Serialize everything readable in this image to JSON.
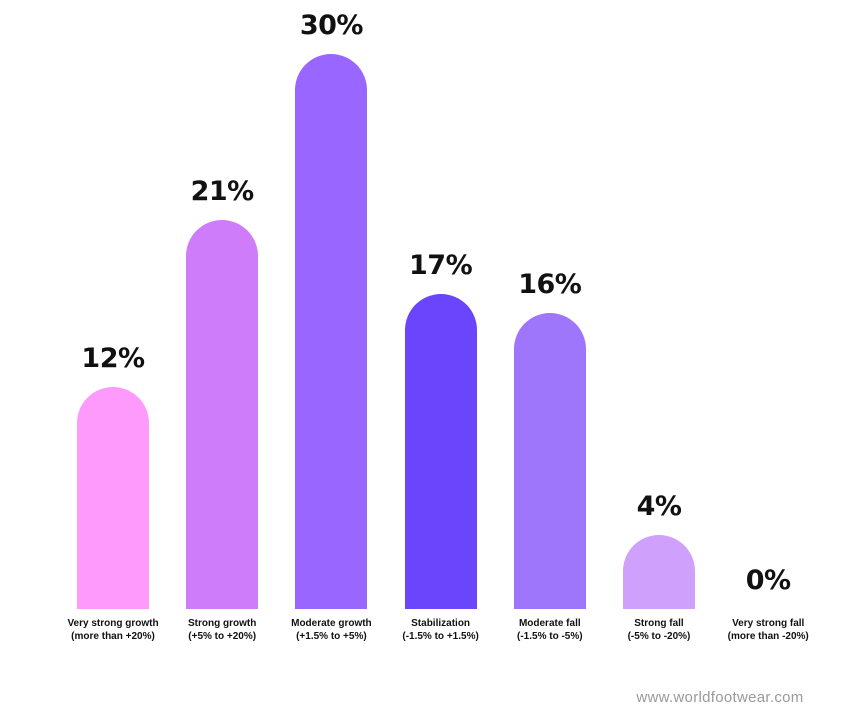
{
  "chart_data": {
    "type": "bar",
    "categories": [
      [
        "Very strong growth",
        "(more than +20%)"
      ],
      [
        "Strong growth",
        "(+5% to +20%)"
      ],
      [
        "Moderate growth",
        "(+1.5% to +5%)"
      ],
      [
        "Stabilization",
        "(-1.5% to +1.5%)"
      ],
      [
        "Moderate fall",
        "(-1.5% to -5%)"
      ],
      [
        "Strong fall",
        "(-5% to -20%)"
      ],
      [
        "Very strong fall",
        "(more than -20%)"
      ]
    ],
    "values": [
      12,
      21,
      30,
      17,
      16,
      4,
      0
    ],
    "value_labels": [
      "12%",
      "21%",
      "30%",
      "17%",
      "16%",
      "4%",
      "0%"
    ],
    "colors": [
      "#fd9afb",
      "#cf7cfb",
      "#9966ff",
      "#6b45fb",
      "#9e76fc",
      "#cfa1fc",
      "#e3d4fd"
    ],
    "ylim": [
      0,
      30
    ],
    "grid": false,
    "legend": "none"
  },
  "watermark": "www.worldfootwear.com"
}
